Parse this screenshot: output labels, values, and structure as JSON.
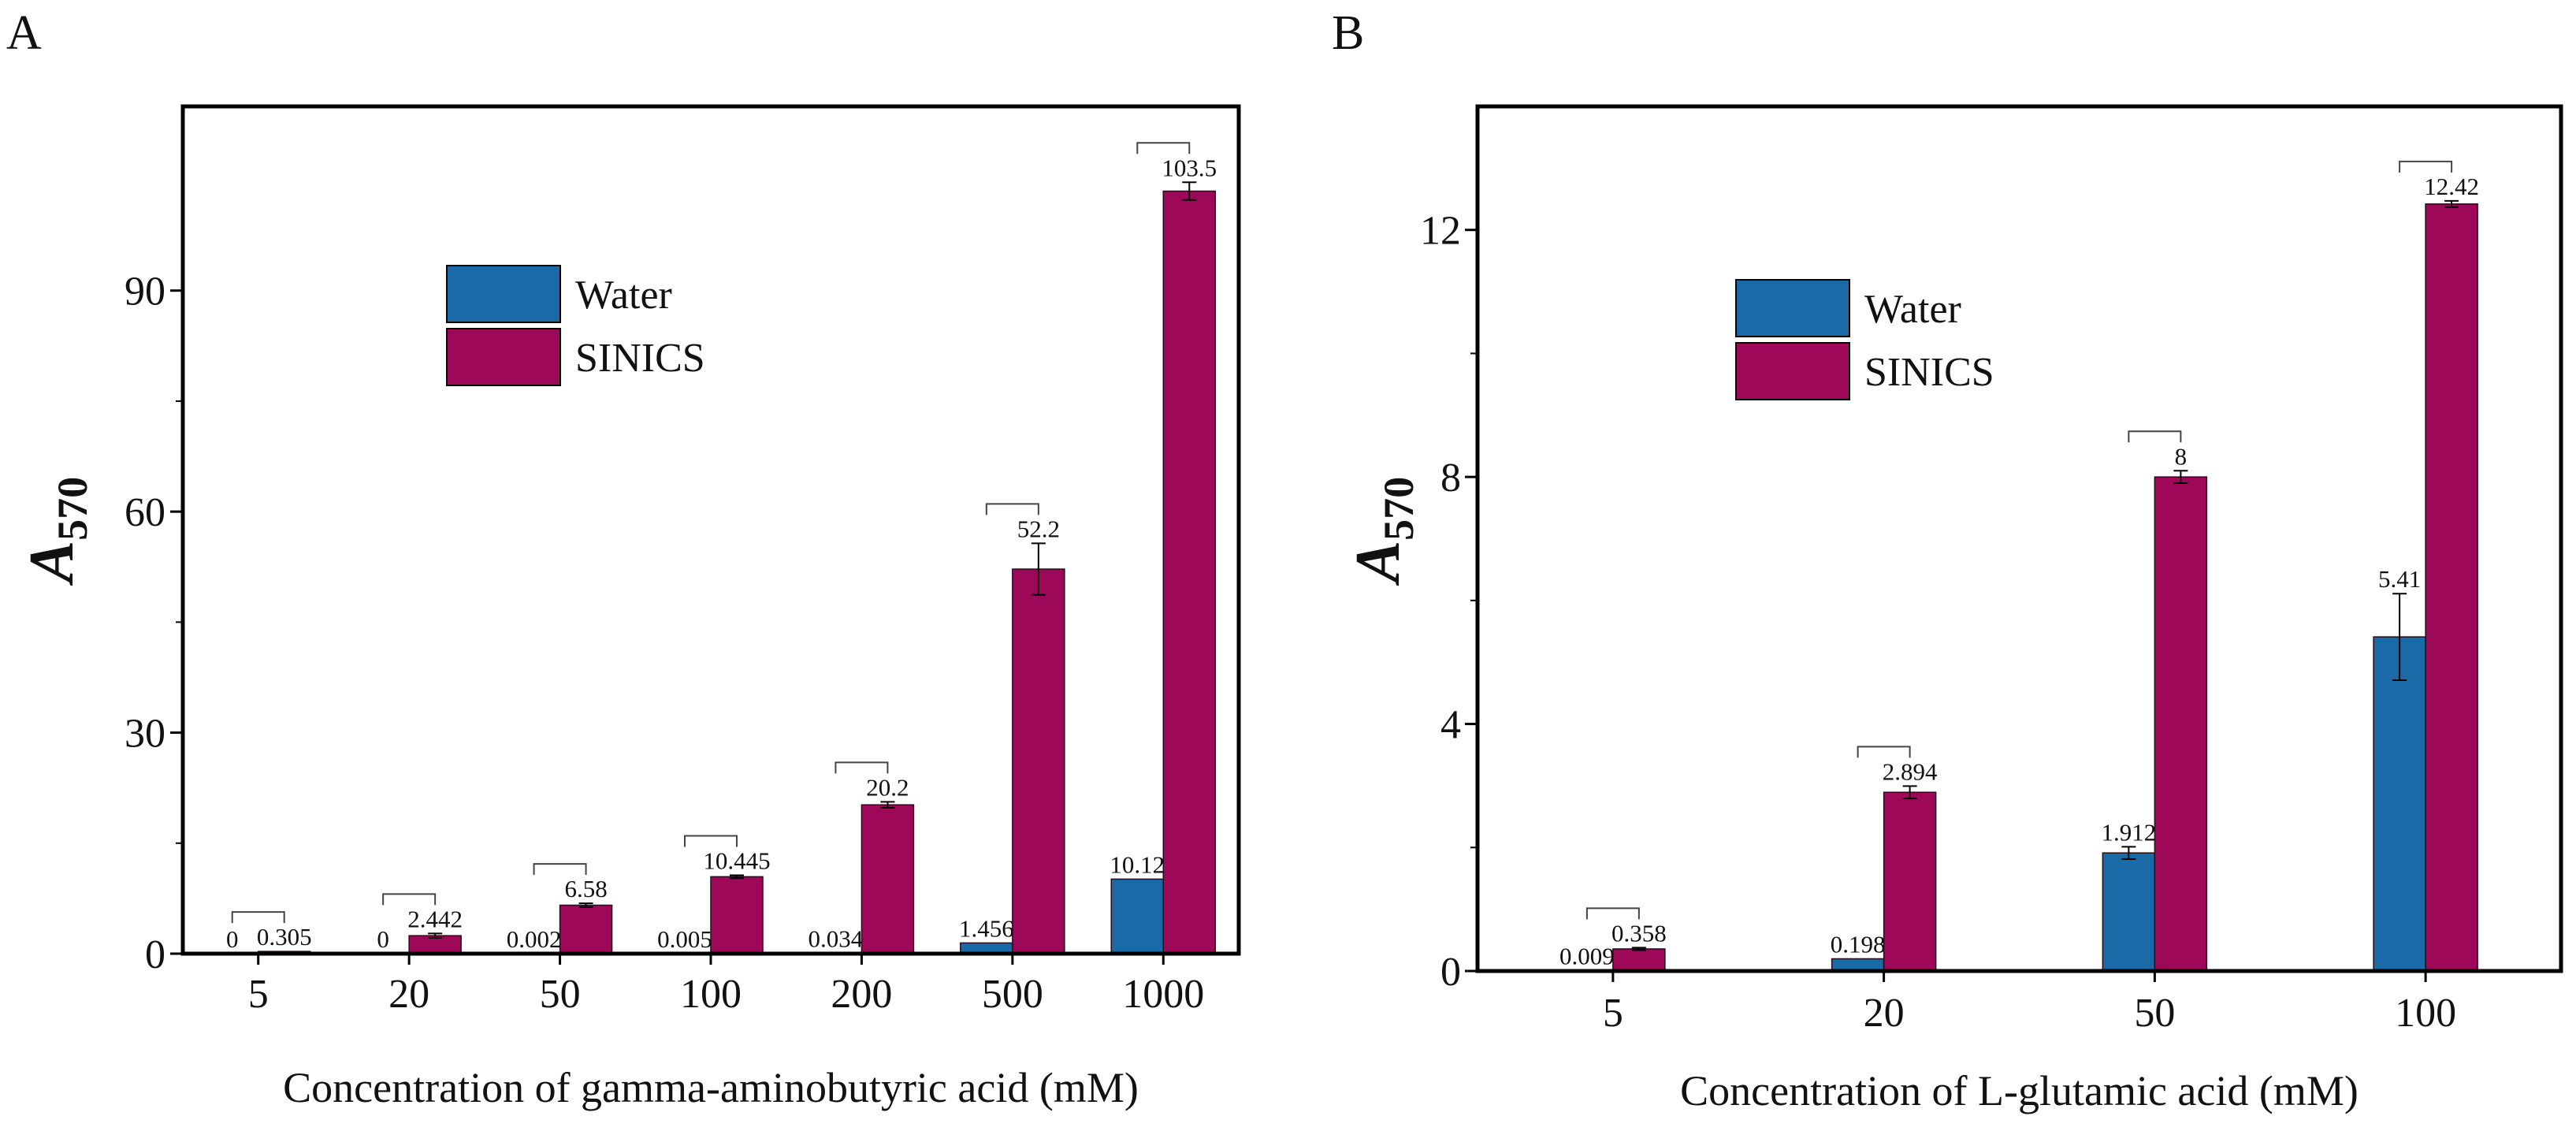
{
  "colors": {
    "water": "#1a6aa8",
    "sinics": "#9e0858",
    "axis": "#000000",
    "bracket": "#444444"
  },
  "chart_data": [
    {
      "panel": "A",
      "type": "bar",
      "title": "",
      "xlabel": "Concentration of gamma-aminobutyric acid (mM)",
      "ylabel": "A",
      "ylabel_subscript": "570",
      "categories": [
        "5",
        "20",
        "50",
        "100",
        "200",
        "500",
        "1000"
      ],
      "ylim": [
        0,
        115
      ],
      "yticks": [
        0,
        30,
        60,
        90
      ],
      "grid": false,
      "legend_position": "upper-left",
      "legend": [
        "Water",
        "SINICS"
      ],
      "series": [
        {
          "name": "Water",
          "color_key": "water",
          "values": [
            0,
            0,
            0.002,
            0.005,
            0.034,
            1.456,
            10.12
          ],
          "labels": [
            "0",
            "0",
            "0.002",
            "0.005",
            "0.034",
            "1.456",
            "10.12"
          ],
          "errors": [
            0,
            0,
            0,
            0,
            0,
            0,
            0
          ]
        },
        {
          "name": "SINICS",
          "color_key": "sinics",
          "values": [
            0.305,
            2.442,
            6.58,
            10.445,
            20.2,
            52.2,
            103.5
          ],
          "labels": [
            "0.305",
            "2.442",
            "6.58",
            "10.445",
            "20.2",
            "52.2",
            "103.5"
          ],
          "errors": [
            0,
            0.3,
            0.25,
            0.2,
            0.4,
            3.5,
            1.2
          ]
        }
      ]
    },
    {
      "panel": "B",
      "type": "bar",
      "title": "",
      "xlabel": "Concentration of L-glutamic acid (mM)",
      "ylabel": "A",
      "ylabel_subscript": "570",
      "categories": [
        "5",
        "20",
        "50",
        "100"
      ],
      "ylim": [
        0,
        14
      ],
      "yticks": [
        0,
        4,
        8,
        12
      ],
      "grid": false,
      "legend_position": "upper-left",
      "legend": [
        "Water",
        "SINICS"
      ],
      "series": [
        {
          "name": "Water",
          "color_key": "water",
          "values": [
            0.009,
            0.198,
            1.912,
            5.41
          ],
          "labels": [
            "0.009",
            "0.198",
            "1.912",
            "5.41"
          ],
          "errors": [
            0,
            0,
            0.1,
            0.7
          ]
        },
        {
          "name": "SINICS",
          "color_key": "sinics",
          "values": [
            0.358,
            2.894,
            8,
            12.42
          ],
          "labels": [
            "0.358",
            "2.894",
            "8",
            "12.42"
          ],
          "errors": [
            0.02,
            0.1,
            0.1,
            0.05
          ]
        }
      ]
    }
  ]
}
